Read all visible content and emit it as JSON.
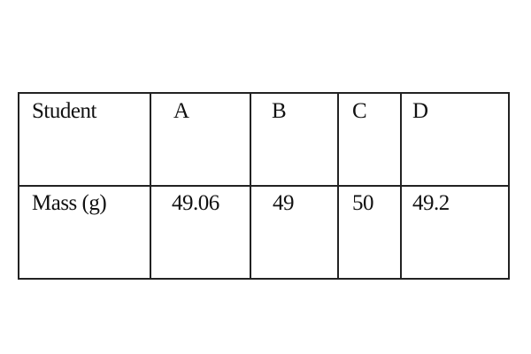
{
  "table": {
    "headers": [
      "Student",
      "A",
      "B",
      "C",
      "D"
    ],
    "rows": [
      [
        "Mass (g)",
        "49.06",
        "49",
        "50",
        "49.2"
      ]
    ]
  }
}
